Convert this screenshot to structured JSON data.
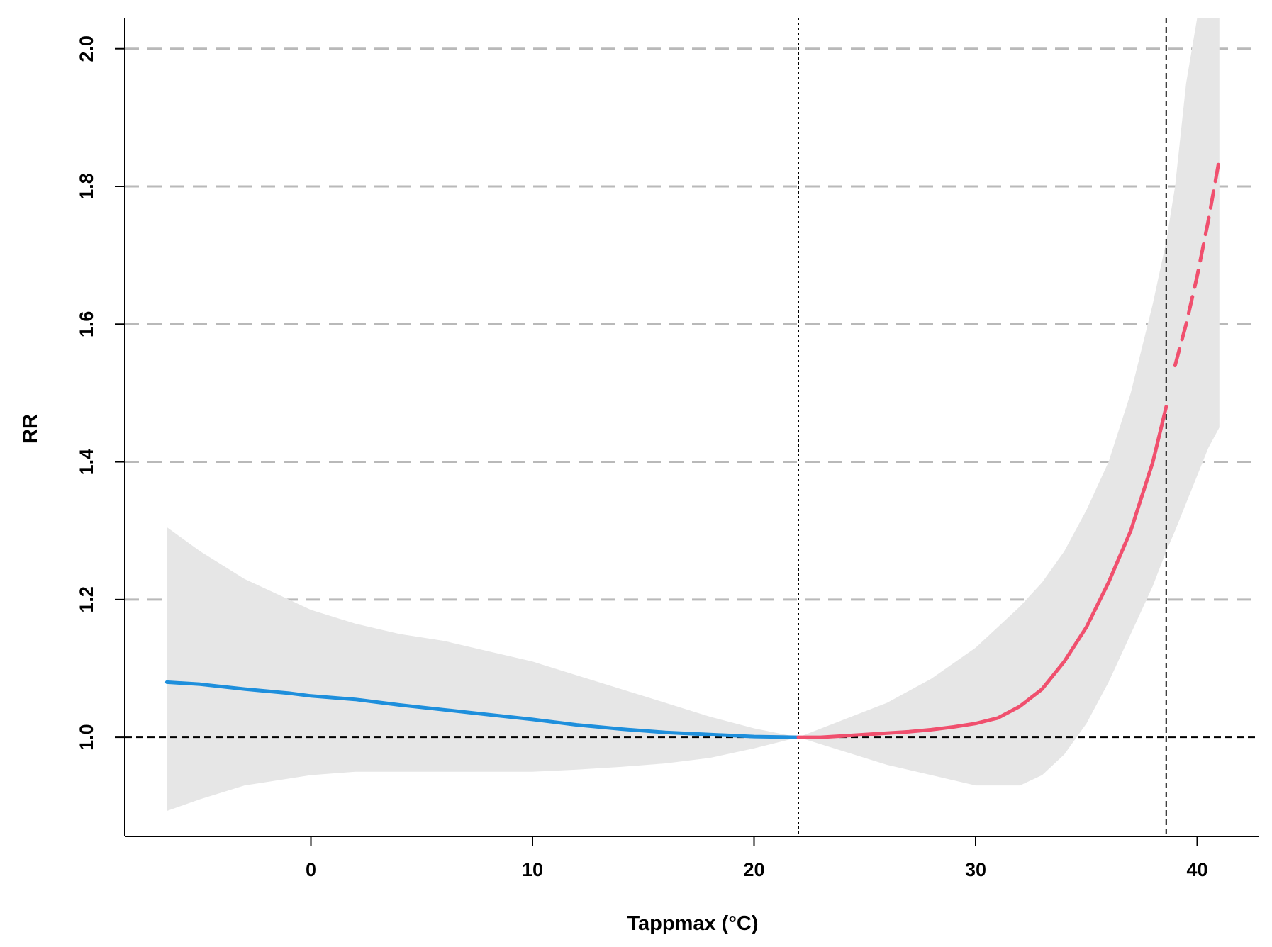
{
  "chart_data": {
    "type": "line",
    "title": "",
    "xlabel": "Tappmax (°C)",
    "ylabel": "RR",
    "xlim": [
      -8.4,
      42.8
    ],
    "ylim": [
      0.856,
      2.045
    ],
    "x_ticks": [
      0,
      10,
      20,
      30,
      40
    ],
    "y_ticks": [
      1.0,
      1.2,
      1.4,
      1.6,
      1.8,
      2.0
    ],
    "x_tick_labels": [
      "0",
      "10",
      "20",
      "30",
      "40"
    ],
    "y_tick_labels": [
      "1.0",
      "1.2",
      "1.4",
      "1.6",
      "1.8",
      "2.0"
    ],
    "grid": "horizontal dashed at y ticks",
    "reference_line_y": 1.0,
    "vertical_lines": [
      {
        "x": 22,
        "style": "dotted"
      },
      {
        "x": 38.6,
        "style": "dashed"
      }
    ],
    "confidence_band": {
      "x": [
        -6.5,
        -5,
        -3,
        -1,
        0,
        2,
        4,
        6,
        8,
        10,
        12,
        14,
        16,
        18,
        20,
        22,
        24,
        26,
        28,
        30,
        31,
        32,
        33,
        34,
        35,
        36,
        37,
        38,
        38.6,
        39,
        39.5,
        40,
        40.5,
        41
      ],
      "lower": [
        0.893,
        0.91,
        0.93,
        0.94,
        0.945,
        0.95,
        0.95,
        0.95,
        0.95,
        0.95,
        0.953,
        0.957,
        0.962,
        0.97,
        0.984,
        1.0,
        0.98,
        0.96,
        0.945,
        0.93,
        0.93,
        0.93,
        0.945,
        0.975,
        1.02,
        1.08,
        1.15,
        1.22,
        1.27,
        1.3,
        1.34,
        1.38,
        1.42,
        1.45
      ],
      "upper": [
        1.305,
        1.27,
        1.23,
        1.2,
        1.185,
        1.165,
        1.15,
        1.14,
        1.125,
        1.11,
        1.09,
        1.07,
        1.05,
        1.03,
        1.013,
        1.0,
        1.025,
        1.05,
        1.085,
        1.13,
        1.16,
        1.19,
        1.225,
        1.27,
        1.33,
        1.4,
        1.5,
        1.63,
        1.72,
        1.8,
        1.95,
        2.045,
        2.045,
        2.045
      ]
    },
    "series": [
      {
        "role": "cold",
        "color": "#1e8fdc",
        "style": "solid",
        "x": [
          -6.5,
          -5,
          -3,
          -1,
          0,
          2,
          4,
          6,
          8,
          10,
          12,
          14,
          16,
          18,
          20,
          22
        ],
        "y": [
          1.08,
          1.077,
          1.07,
          1.064,
          1.06,
          1.055,
          1.047,
          1.04,
          1.033,
          1.026,
          1.018,
          1.012,
          1.007,
          1.004,
          1.001,
          1.0
        ]
      },
      {
        "role": "heat",
        "color": "#f0506e",
        "style": "solid",
        "x": [
          22,
          23,
          24,
          25,
          26,
          27,
          28,
          29,
          30,
          31,
          32,
          33,
          34,
          35,
          36,
          37,
          38,
          38.6
        ],
        "y": [
          1.0,
          1.0,
          1.002,
          1.004,
          1.006,
          1.008,
          1.011,
          1.015,
          1.02,
          1.028,
          1.045,
          1.07,
          1.11,
          1.16,
          1.225,
          1.3,
          1.4,
          1.48
        ]
      },
      {
        "role": "heat-extrapolated",
        "color": "#f0506e",
        "style": "dashed",
        "x": [
          39,
          39.5,
          40,
          40.5,
          41
        ],
        "y": [
          1.54,
          1.6,
          1.67,
          1.75,
          1.84
        ]
      }
    ]
  }
}
